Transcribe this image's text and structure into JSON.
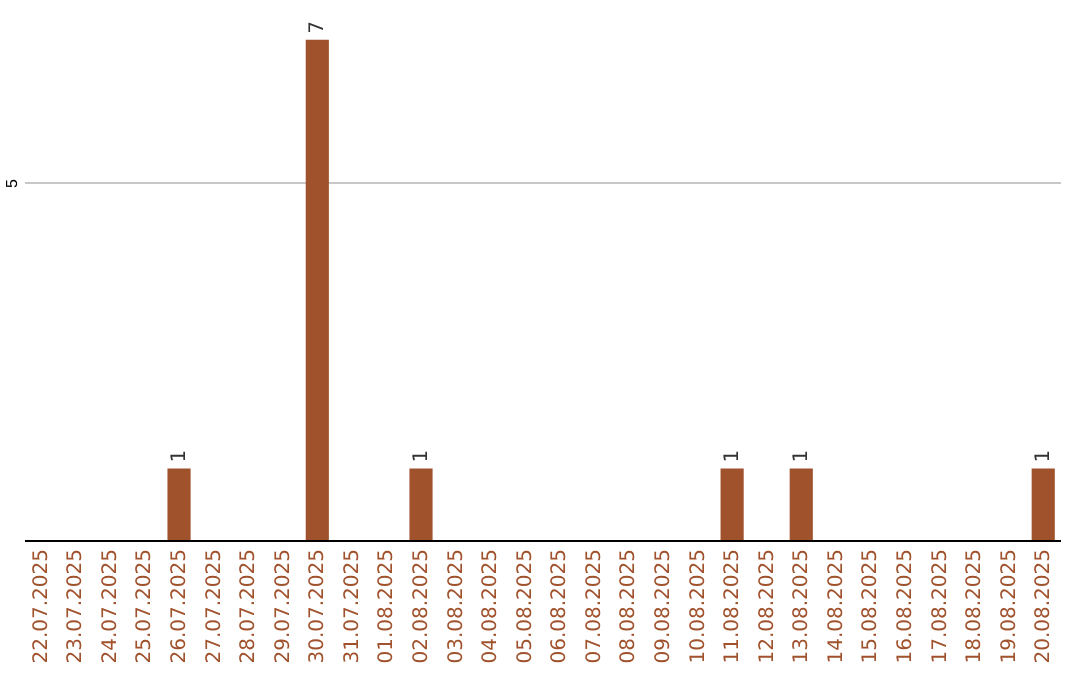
{
  "chart_data": {
    "type": "bar",
    "categories": [
      "22.07.2025",
      "23.07.2025",
      "24.07.2025",
      "25.07.2025",
      "26.07.2025",
      "27.07.2025",
      "28.07.2025",
      "29.07.2025",
      "30.07.2025",
      "31.07.2025",
      "01.08.2025",
      "02.08.2025",
      "03.08.2025",
      "04.08.2025",
      "05.08.2025",
      "06.08.2025",
      "07.08.2025",
      "08.08.2025",
      "09.08.2025",
      "10.08.2025",
      "11.08.2025",
      "12.08.2025",
      "13.08.2025",
      "14.08.2025",
      "15.08.2025",
      "16.08.2025",
      "17.08.2025",
      "18.08.2025",
      "19.08.2025",
      "20.08.2025"
    ],
    "values": [
      0,
      0,
      0,
      0,
      1,
      0,
      0,
      0,
      7,
      0,
      0,
      1,
      0,
      0,
      0,
      0,
      0,
      0,
      0,
      0,
      1,
      0,
      1,
      0,
      0,
      0,
      0,
      0,
      0,
      1
    ],
    "color": "#a0522d",
    "value_labels": [
      null,
      null,
      null,
      null,
      "1",
      null,
      null,
      null,
      "7",
      null,
      null,
      "1",
      null,
      null,
      null,
      null,
      null,
      null,
      null,
      null,
      "1",
      null,
      "1",
      null,
      null,
      null,
      null,
      null,
      null,
      "1"
    ],
    "ylim": [
      0,
      7.5
    ],
    "yticks": [
      5
    ],
    "grid": "y"
  }
}
